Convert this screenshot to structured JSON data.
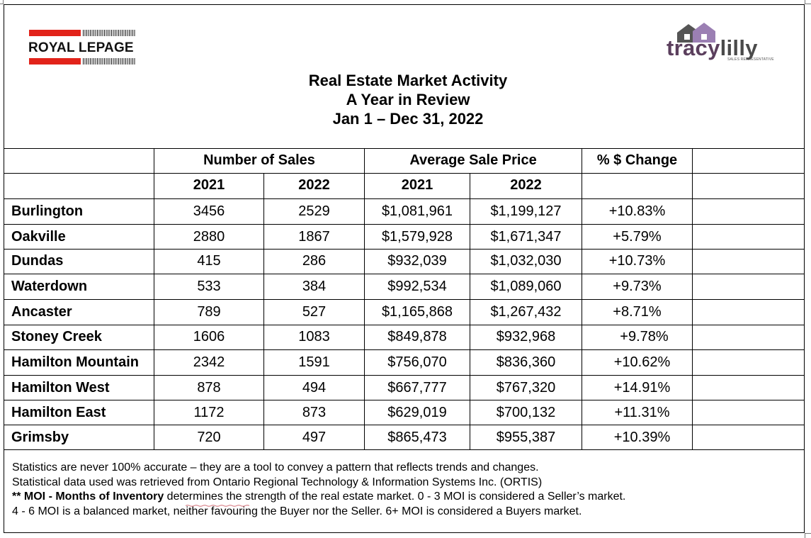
{
  "header": {
    "left_logo_text": "ROYAL LEPAGE",
    "right_logo_word_a": "tracy",
    "right_logo_word_b": "lilly",
    "right_logo_tagline": "SALES REPRESENTATIVE",
    "title_lines": [
      "Real Estate Market Activity",
      "A Year in Review",
      "Jan 1 – Dec 31, 2022"
    ]
  },
  "colors": {
    "royal_lepage_red": "#e2231a",
    "tracylilly_purple": "#5b3f5d",
    "house_purple": "#9b7fb3",
    "house_gray": "#555555"
  },
  "table": {
    "group_headers": {
      "sales": "Number of Sales",
      "price": "Average Sale Price",
      "change": "% $ Change"
    },
    "year_headers": [
      "2021",
      "2022",
      "2021",
      "2022"
    ],
    "rows": [
      {
        "area": "Burlington",
        "sales_2021": "3456",
        "sales_2022": "2529",
        "price_2021": "$1,081,961",
        "price_2022": "$1,199,127",
        "change": "+10.83%"
      },
      {
        "area": "Oakville",
        "sales_2021": "2880",
        "sales_2022": "1867",
        "price_2021": "$1,579,928",
        "price_2022": "$1,671,347",
        "change": "+5.79%"
      },
      {
        "area": "Dundas",
        "sales_2021": "415",
        "sales_2022": "286",
        "price_2021": "$932,039",
        "price_2022": "$1,032,030",
        "change": "+10.73%"
      },
      {
        "area": "Waterdown",
        "sales_2021": "533",
        "sales_2022": "384",
        "price_2021": "$992,534",
        "price_2022": "$1,089,060",
        "change": "+9.73%"
      },
      {
        "area": "Ancaster",
        "sales_2021": "789",
        "sales_2022": "527",
        "price_2021": "$1,165,868",
        "price_2022": "$1,267,432",
        "change": "+8.71%"
      },
      {
        "area": "Stoney Creek",
        "sales_2021": "1606",
        "sales_2022": "1083",
        "price_2021": "$849,878",
        "price_2022": "$932,968",
        "change": "+9.78%"
      },
      {
        "area": "Hamilton Mountain",
        "sales_2021": "2342",
        "sales_2022": "1591",
        "price_2021": "$756,070",
        "price_2022": "$836,360",
        "change": "+10.62%"
      },
      {
        "area": "Hamilton West",
        "sales_2021": "878",
        "sales_2022": "494",
        "price_2021": "$667,777",
        "price_2022": "$767,320",
        "change": "+14.91%"
      },
      {
        "area": "Hamilton East",
        "sales_2021": "1172",
        "sales_2022": "873",
        "price_2021": "$629,019",
        "price_2022": "$700,132",
        "change": "+11.31%"
      },
      {
        "area": "Grimsby",
        "sales_2021": "720",
        "sales_2022": "497",
        "price_2021": "$865,473",
        "price_2022": "$955,387",
        "change": "+10.39%"
      }
    ]
  },
  "notes": {
    "line1": "Statistics are never 100% accurate – they are a tool to convey a pattern that reflects trends and changes.",
    "line2": "Statistical data used was retrieved from Ontario Regional Technology & Information Systems Inc. (ORTIS)",
    "line3_bold": "** MOI - Months of Inventory",
    "line3_rest": " determines the strength of the real estate market. 0 - 3 MOI is considered a Seller’s market.",
    "line4": "4 - 6 MOI is a balanced market, neither favouring the Buyer nor the Seller. 6+ MOI is considered a Buyers market."
  }
}
